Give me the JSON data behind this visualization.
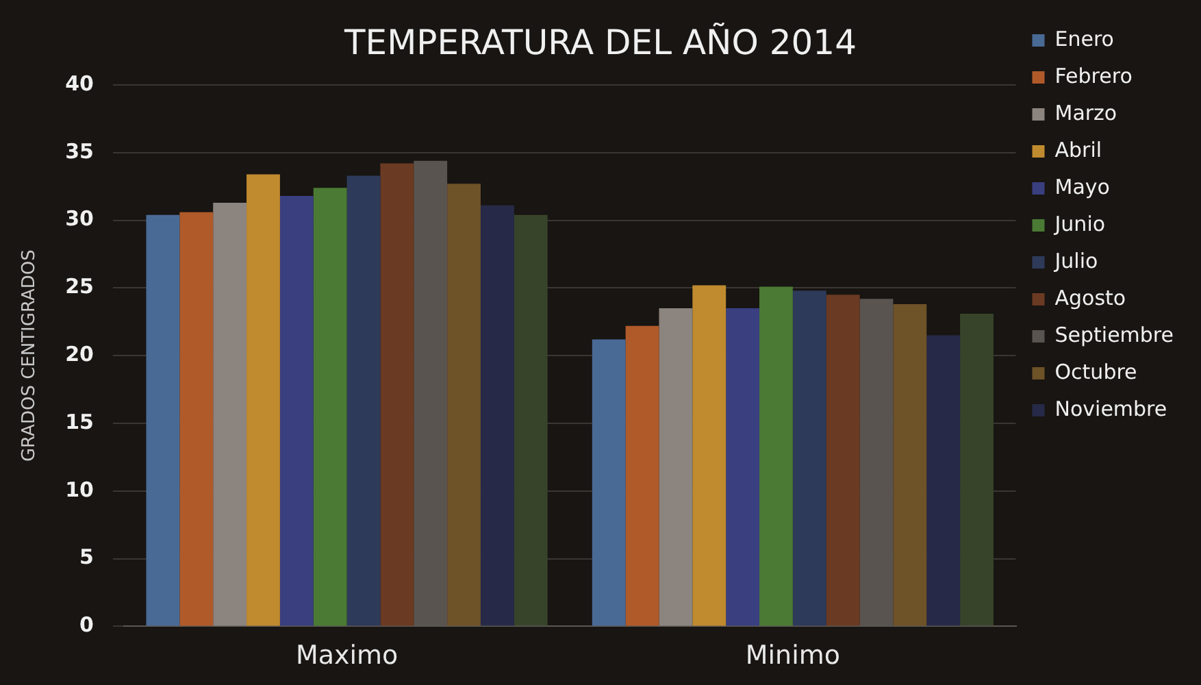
{
  "chart_data": {
    "type": "bar",
    "title": "TEMPERATURA DEL AÑO 2014",
    "ylabel": "GRADOS CENTIGRADOS",
    "categories": [
      "Maximo",
      "Minimo"
    ],
    "series": [
      {
        "name": "Enero",
        "color": "#4a6a96",
        "values": [
          30.4,
          21.2
        ]
      },
      {
        "name": "Febrero",
        "color": "#b05a2a",
        "values": [
          30.6,
          22.2
        ]
      },
      {
        "name": "Marzo",
        "color": "#8c847e",
        "values": [
          31.3,
          23.5
        ]
      },
      {
        "name": "Abril",
        "color": "#c08a2e",
        "values": [
          33.4,
          25.2
        ]
      },
      {
        "name": "Mayo",
        "color": "#3a3f80",
        "values": [
          31.8,
          23.5
        ]
      },
      {
        "name": "Junio",
        "color": "#4a7a34",
        "values": [
          32.4,
          25.1
        ]
      },
      {
        "name": "Julio",
        "color": "#2e3a5a",
        "values": [
          33.3,
          24.8
        ]
      },
      {
        "name": "Agosto",
        "color": "#6a3a22",
        "values": [
          34.2,
          24.5
        ]
      },
      {
        "name": "Septiembre",
        "color": "#5a5450",
        "values": [
          34.4,
          24.2
        ]
      },
      {
        "name": "Octubre",
        "color": "#6e5228",
        "values": [
          32.7,
          23.8
        ]
      },
      {
        "name": "Noviembre",
        "color": "#262a48",
        "values": [
          31.1,
          21.5
        ]
      },
      {
        "color": "#38442a",
        "values": [
          30.4,
          23.1
        ]
      }
    ],
    "ylim": [
      0,
      40
    ],
    "yticks": [
      0,
      5,
      10,
      15,
      20,
      25,
      30,
      35,
      40
    ],
    "grid": "y",
    "legend": "right"
  }
}
